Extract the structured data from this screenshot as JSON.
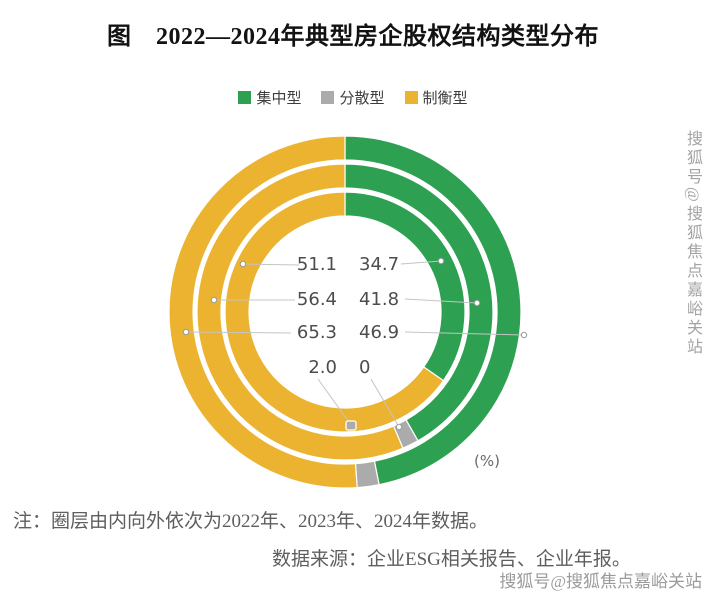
{
  "title": "图　2022—2024年典型房企股权结构类型分布",
  "legend": [
    {
      "label": "集中型",
      "color": "#2EA052"
    },
    {
      "label": "分散型",
      "color": "#ABABAB"
    },
    {
      "label": "制衡型",
      "color": "#EBB32F"
    }
  ],
  "chart_data": {
    "type": "pie",
    "subtype": "concentric-donut-3-rings",
    "title": "2022—2024年典型房企股权结构类型分布",
    "unit_label": "(%)",
    "legend_position": "top",
    "categories": [
      "集中型",
      "分散型",
      "制衡型"
    ],
    "colors": [
      "#2EA052",
      "#ABABAB",
      "#EBB32F"
    ],
    "rings": [
      {
        "year": "2022",
        "position": "inner",
        "集中型": 34.7,
        "分散型": 0,
        "制衡型": 65.3
      },
      {
        "year": "2023",
        "position": "middle",
        "集中型": 41.8,
        "分散型": null,
        "制衡型": 56.4
      },
      {
        "year": "2024",
        "position": "outer",
        "集中型": 46.9,
        "分散型": 2.0,
        "制衡型": 51.1
      }
    ],
    "center_labels": {
      "left_column": [
        "51.1",
        "56.4",
        "65.3",
        "2.0"
      ],
      "right_column": [
        "34.7",
        "41.8",
        "46.9",
        "0"
      ]
    }
  },
  "note": "注：圈层由内向外依次为2022年、2023年、2024年数据。",
  "source": "数据来源：企业ESG相关报告、企业年报。",
  "watermark": "搜狐号@搜狐焦点嘉峪关站"
}
